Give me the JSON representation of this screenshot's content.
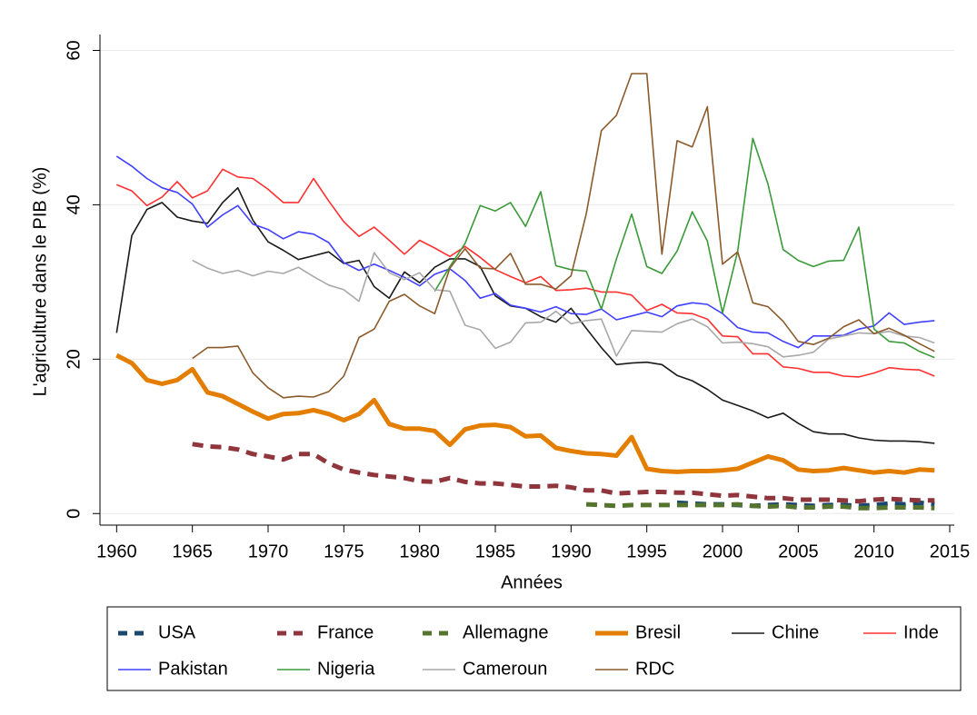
{
  "chart_data": {
    "type": "line",
    "y_label": "L'agriculture dans le PIB (%)",
    "x_label": "Années",
    "x": [
      1960,
      1961,
      1962,
      1963,
      1964,
      1965,
      1966,
      1967,
      1968,
      1969,
      1970,
      1971,
      1972,
      1973,
      1974,
      1975,
      1976,
      1977,
      1978,
      1979,
      1980,
      1981,
      1982,
      1983,
      1984,
      1985,
      1986,
      1987,
      1988,
      1989,
      1990,
      1991,
      1992,
      1993,
      1994,
      1995,
      1996,
      1997,
      1998,
      1999,
      2000,
      2001,
      2002,
      2003,
      2004,
      2005,
      2006,
      2007,
      2008,
      2009,
      2010,
      2011,
      2012,
      2013,
      2014
    ],
    "xlim": [
      1958.9,
      2015.3
    ],
    "xticks": [
      1960,
      1965,
      1970,
      1975,
      1980,
      1985,
      1990,
      1995,
      2000,
      2005,
      2010,
      2015
    ],
    "ylim": [
      -1.5,
      63
    ],
    "yticks": [
      0,
      20,
      40,
      60
    ],
    "grid": true,
    "legend": "bottom",
    "series": [
      {
        "name": "USA",
        "color": "#1a476f",
        "dash": true,
        "thick": true,
        "values": [
          null,
          null,
          null,
          null,
          null,
          null,
          null,
          null,
          null,
          null,
          null,
          null,
          null,
          null,
          null,
          null,
          null,
          null,
          null,
          null,
          null,
          null,
          null,
          null,
          null,
          null,
          null,
          null,
          null,
          null,
          null,
          null,
          null,
          null,
          null,
          null,
          null,
          1.4,
          1.3,
          1.2,
          1.2,
          1.1,
          1.0,
          1.1,
          1.2,
          1.1,
          1.0,
          1.1,
          1.1,
          1.0,
          1.1,
          1.3,
          1.2,
          1.4,
          1.2
        ]
      },
      {
        "name": "France",
        "color": "#90353b",
        "dash": true,
        "thick": true,
        "values": [
          null,
          null,
          null,
          null,
          null,
          9.0,
          8.7,
          8.6,
          8.3,
          7.7,
          7.4,
          7.0,
          7.7,
          7.7,
          6.5,
          5.7,
          5.3,
          5.0,
          4.8,
          4.6,
          4.2,
          4.1,
          4.6,
          4.1,
          3.9,
          3.9,
          3.7,
          3.5,
          3.5,
          3.6,
          3.4,
          3.0,
          3.0,
          2.6,
          2.7,
          2.8,
          2.8,
          2.7,
          2.7,
          2.5,
          2.3,
          2.4,
          2.2,
          2.0,
          2.0,
          1.8,
          1.8,
          1.8,
          1.7,
          1.6,
          1.8,
          1.9,
          1.8,
          1.7,
          1.7
        ]
      },
      {
        "name": "Allemagne",
        "color": "#55752f",
        "dash": true,
        "thick": true,
        "values": [
          null,
          null,
          null,
          null,
          null,
          null,
          null,
          null,
          null,
          null,
          null,
          null,
          null,
          null,
          null,
          null,
          null,
          null,
          null,
          null,
          null,
          null,
          null,
          null,
          null,
          null,
          null,
          null,
          null,
          null,
          null,
          1.2,
          1.1,
          1.0,
          1.1,
          1.1,
          1.1,
          1.1,
          1.1,
          1.1,
          1.1,
          1.2,
          1.0,
          0.9,
          1.0,
          0.8,
          0.8,
          0.9,
          0.9,
          0.7,
          0.7,
          0.8,
          0.8,
          0.8,
          0.7
        ]
      },
      {
        "name": "Bresil",
        "color": "#e37e00",
        "dash": false,
        "thick": true,
        "values": [
          20.5,
          19.5,
          17.3,
          16.8,
          17.3,
          18.7,
          15.7,
          15.2,
          14.2,
          13.2,
          12.3,
          12.9,
          13.0,
          13.4,
          12.9,
          12.1,
          12.9,
          14.7,
          11.6,
          11.0,
          11.0,
          10.7,
          8.9,
          10.9,
          11.4,
          11.5,
          11.2,
          10.0,
          10.1,
          8.5,
          8.1,
          7.8,
          7.7,
          7.5,
          9.9,
          5.8,
          5.5,
          5.4,
          5.5,
          5.5,
          5.6,
          5.8,
          6.6,
          7.4,
          6.9,
          5.7,
          5.5,
          5.6,
          5.9,
          5.6,
          5.3,
          5.5,
          5.3,
          5.7,
          5.6
        ]
      },
      {
        "name": "Chine",
        "color": "#1a1a1a",
        "dash": false,
        "thick": false,
        "values": [
          23.4,
          36.0,
          39.4,
          40.3,
          38.4,
          37.9,
          37.6,
          40.3,
          42.2,
          38.0,
          35.2,
          34.1,
          32.9,
          33.4,
          33.9,
          32.4,
          32.8,
          29.4,
          27.9,
          31.3,
          29.9,
          31.9,
          33.0,
          33.0,
          32.0,
          28.2,
          26.9,
          26.6,
          25.5,
          24.8,
          26.6,
          24.0,
          21.5,
          19.3,
          19.5,
          19.6,
          19.3,
          17.9,
          17.2,
          16.1,
          14.7,
          14.0,
          13.3,
          12.4,
          13.0,
          11.7,
          10.6,
          10.3,
          10.3,
          9.8,
          9.5,
          9.4,
          9.4,
          9.3,
          9.1
        ]
      },
      {
        "name": "Inde",
        "color": "#ff3030",
        "dash": false,
        "thick": false,
        "values": [
          42.6,
          41.8,
          39.9,
          41.0,
          43.0,
          40.9,
          41.8,
          44.6,
          43.6,
          43.4,
          42.0,
          40.3,
          40.3,
          43.4,
          40.5,
          37.8,
          35.9,
          37.1,
          35.4,
          33.6,
          35.4,
          34.4,
          33.3,
          34.6,
          33.2,
          31.6,
          30.7,
          29.9,
          30.7,
          28.9,
          29.0,
          29.2,
          28.7,
          28.7,
          28.3,
          26.3,
          27.1,
          26.0,
          25.9,
          25.2,
          23.0,
          22.9,
          20.7,
          20.7,
          19.0,
          18.8,
          18.3,
          18.3,
          17.8,
          17.7,
          18.2,
          18.9,
          18.7,
          18.6,
          17.8
        ]
      },
      {
        "name": "Pakistan",
        "color": "#4040ff",
        "dash": false,
        "thick": false,
        "values": [
          46.3,
          45.0,
          43.4,
          42.2,
          41.6,
          40.1,
          37.1,
          38.7,
          39.9,
          37.5,
          36.8,
          35.6,
          36.5,
          36.2,
          35.1,
          32.5,
          31.5,
          32.3,
          31.5,
          30.6,
          29.5,
          31.0,
          31.7,
          30.2,
          27.9,
          28.5,
          27.0,
          26.6,
          26.1,
          26.8,
          25.9,
          25.8,
          26.5,
          25.1,
          25.6,
          26.1,
          25.5,
          26.9,
          27.3,
          27.1,
          25.9,
          24.1,
          23.5,
          23.4,
          22.3,
          21.5,
          23.0,
          23.0,
          23.1,
          23.9,
          24.3,
          26.0,
          24.5,
          24.8,
          25.0
        ]
      },
      {
        "name": "Nigeria",
        "color": "#3a9a3a",
        "dash": false,
        "thick": false,
        "values": [
          null,
          null,
          null,
          null,
          null,
          null,
          null,
          null,
          null,
          null,
          null,
          null,
          null,
          null,
          null,
          null,
          null,
          null,
          null,
          null,
          null,
          28.8,
          32.0,
          35.0,
          39.9,
          39.2,
          40.3,
          37.2,
          41.7,
          32.1,
          31.6,
          31.4,
          26.5,
          33.0,
          38.8,
          32.0,
          31.1,
          34.0,
          39.1,
          35.3,
          26.0,
          34.0,
          48.6,
          42.7,
          34.2,
          32.8,
          32.0,
          32.7,
          32.8,
          37.1,
          23.9,
          22.3,
          22.1,
          21.0,
          20.2
        ]
      },
      {
        "name": "Cameroun",
        "color": "#a8a8a8",
        "dash": false,
        "thick": false,
        "values": [
          null,
          null,
          null,
          null,
          null,
          32.8,
          31.8,
          31.1,
          31.5,
          30.8,
          31.4,
          31.1,
          31.9,
          30.7,
          29.6,
          29.0,
          27.5,
          33.8,
          31.2,
          30.3,
          31.2,
          29.0,
          28.8,
          24.4,
          23.8,
          21.4,
          22.2,
          24.7,
          24.8,
          26.2,
          24.6,
          25.0,
          25.2,
          20.4,
          23.7,
          23.6,
          23.5,
          24.6,
          25.2,
          24.2,
          22.1,
          22.2,
          22.0,
          21.6,
          20.3,
          20.5,
          20.9,
          22.6,
          23.0,
          23.4,
          23.3,
          23.6,
          23.0,
          22.8,
          22.1
        ]
      },
      {
        "name": "RDC",
        "color": "#8b5a2b",
        "dash": false,
        "thick": false,
        "values": [
          null,
          null,
          null,
          null,
          null,
          20.1,
          21.5,
          21.5,
          21.7,
          18.2,
          16.3,
          15.0,
          15.2,
          15.1,
          15.8,
          17.8,
          22.8,
          23.9,
          27.5,
          28.4,
          26.9,
          25.9,
          31.8,
          34.3,
          31.8,
          31.7,
          33.7,
          29.7,
          29.7,
          29.1,
          30.8,
          38.8,
          49.6,
          51.6,
          57.0,
          57.0,
          33.6,
          48.3,
          47.5,
          52.7,
          32.3,
          33.9,
          27.3,
          26.8,
          24.9,
          22.3,
          21.9,
          22.7,
          24.2,
          25.1,
          23.3,
          24.0,
          23.1,
          22.0,
          21.0
        ]
      }
    ]
  }
}
